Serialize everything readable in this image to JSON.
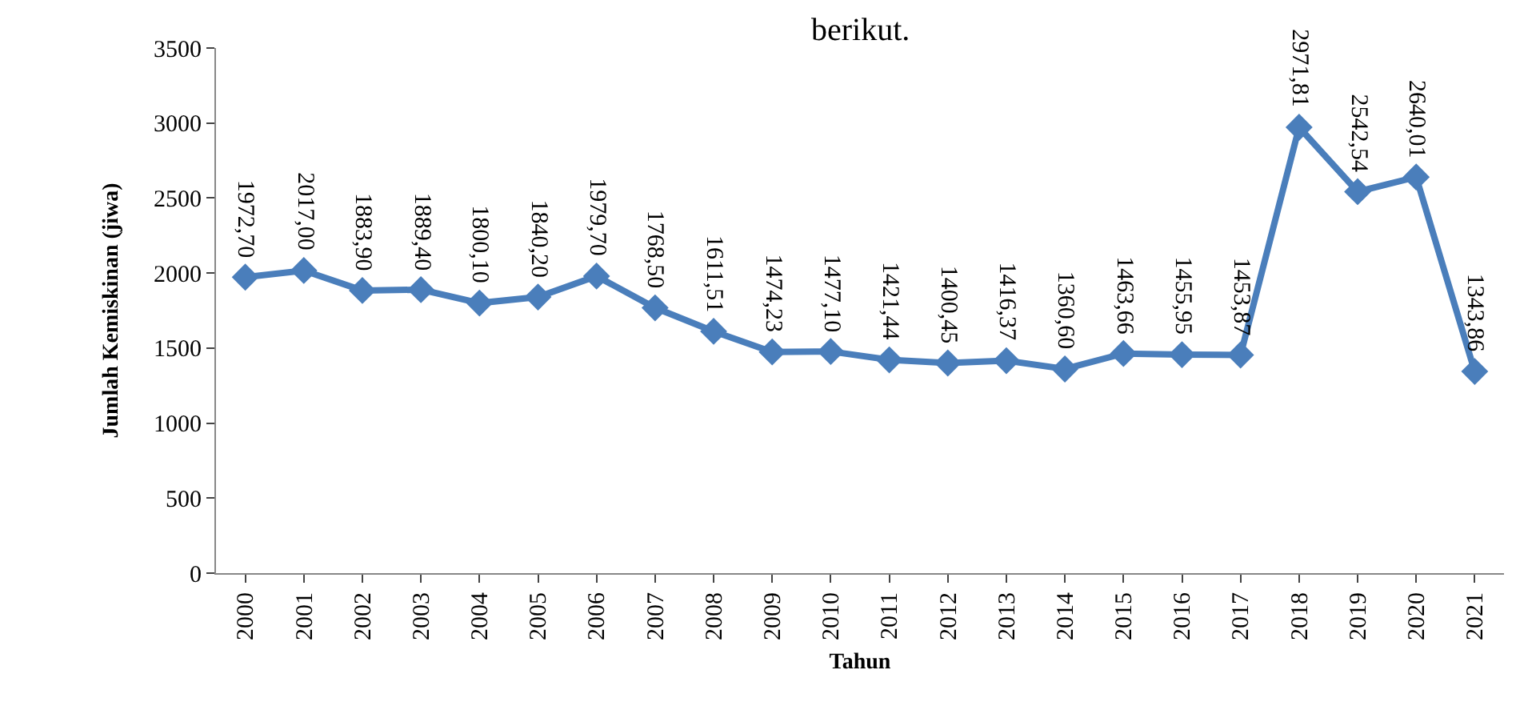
{
  "chart_data": {
    "type": "line",
    "annotations": [
      "berikut."
    ],
    "xlabel": "Tahun",
    "ylabel": "Jumlah Kemiskinan (jiwa)",
    "categories": [
      "2000",
      "2001",
      "2002",
      "2003",
      "2004",
      "2005",
      "2006",
      "2007",
      "2008",
      "2009",
      "2010",
      "2011",
      "2012",
      "2013",
      "2014",
      "2015",
      "2016",
      "2017",
      "2018",
      "2019",
      "2020",
      "2021"
    ],
    "series": [
      {
        "color": "#4a7ebb",
        "values": [
          1972.7,
          2017.0,
          1883.9,
          1889.4,
          1800.1,
          1840.2,
          1979.7,
          1768.5,
          1611.51,
          1474.23,
          1477.1,
          1421.44,
          1400.45,
          1416.37,
          1360.6,
          1463.66,
          1455.95,
          1453.87,
          2971.81,
          2542.54,
          2640.01,
          1343.86
        ],
        "value_labels": [
          "1972,70",
          "2017,00",
          "1883,90",
          "1889,40",
          "1800,10",
          "1840,20",
          "1979,70",
          "1768,50",
          "1611,51",
          "1474,23",
          "1477,10",
          "1421,44",
          "1400,45",
          "1416,37",
          "1360,60",
          "1463,66",
          "1455,95",
          "1453,87",
          "2971,81",
          "2542,54",
          "2640,01",
          "1343,86"
        ]
      }
    ],
    "ylim": [
      0,
      3500
    ],
    "yticks": [
      0,
      500,
      1000,
      1500,
      2000,
      2500,
      3000,
      3500
    ],
    "marker": "diamond",
    "line_style": "solid"
  }
}
